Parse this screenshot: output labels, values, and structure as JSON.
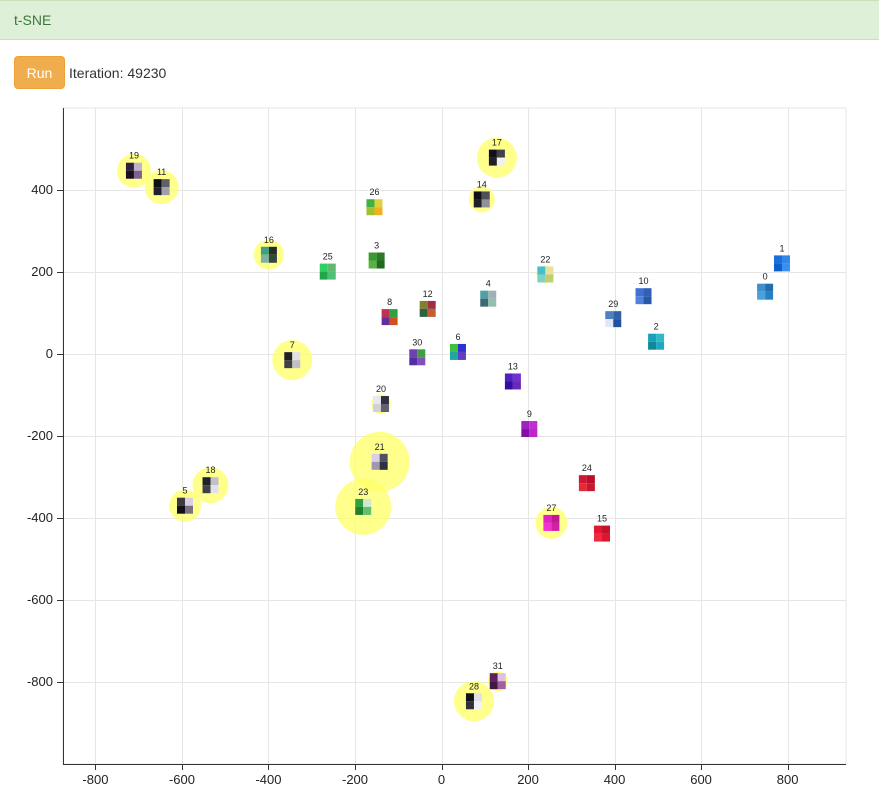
{
  "header": {
    "title": "t-SNE"
  },
  "controls": {
    "run_label": "Run",
    "iteration_label": "Iteration: 49230"
  },
  "chart_data": {
    "type": "scatter",
    "xlim": [
      -875,
      935
    ],
    "ylim": [
      -1000,
      600
    ],
    "grid": true,
    "x_ticks": [
      -800,
      -600,
      -400,
      -200,
      0,
      200,
      400,
      600,
      800
    ],
    "y_ticks": [
      400,
      200,
      0,
      -200,
      -400,
      -600,
      -800
    ],
    "highlight_color": "#ffff66",
    "points": [
      {
        "label": "0",
        "x": 748,
        "y": 152,
        "size": 0,
        "colors": [
          "#3d8fd0",
          "#1f6fb0",
          "#4aa0d8",
          "#2a7fc0"
        ]
      },
      {
        "label": "1",
        "x": 787,
        "y": 221,
        "size": 0,
        "colors": [
          "#1a6fd8",
          "#2f88e8",
          "#0f5fc8",
          "#3a90f0"
        ]
      },
      {
        "label": "2",
        "x": 496,
        "y": 30,
        "size": 0,
        "colors": [
          "#1aa0b8",
          "#2fb8c8",
          "#108898",
          "#20a8c0"
        ]
      },
      {
        "label": "3",
        "x": -150,
        "y": 228,
        "size": 0,
        "colors": [
          "#3a9a30",
          "#2a7a28",
          "#5ab040",
          "#1e6a20"
        ]
      },
      {
        "label": "4",
        "x": 108,
        "y": 135,
        "size": 0,
        "colors": [
          "#50a0a8",
          "#a0b0b8",
          "#406870",
          "#90c0b0"
        ]
      },
      {
        "label": "5",
        "x": -593,
        "y": -370,
        "size": 16,
        "colors": [
          "#3a3a40",
          "#d8d0e0",
          "#101018",
          "#7a7080"
        ]
      },
      {
        "label": "6",
        "x": 38,
        "y": 5,
        "size": 0,
        "colors": [
          "#40c040",
          "#3030d0",
          "#20a8a0",
          "#6040c0"
        ]
      },
      {
        "label": "7",
        "x": -345,
        "y": -15,
        "size": 20,
        "colors": [
          "#202028",
          "#e0e0e8",
          "#404048",
          "#c0c0c8"
        ]
      },
      {
        "label": "8",
        "x": -120,
        "y": 90,
        "size": 0,
        "colors": [
          "#c03050",
          "#30a040",
          "#6030a0",
          "#d05020"
        ]
      },
      {
        "label": "9",
        "x": 203,
        "y": -183,
        "size": 0,
        "colors": [
          "#a020c0",
          "#c030d0",
          "#8010a8",
          "#b828c8"
        ]
      },
      {
        "label": "10",
        "x": 467,
        "y": 141,
        "size": 0,
        "colors": [
          "#4070d0",
          "#3060b8",
          "#5080e0",
          "#2858a8"
        ]
      },
      {
        "label": "11",
        "x": -647,
        "y": 407,
        "size": 17,
        "colors": [
          "#101018",
          "#606068",
          "#202030",
          "#a0a0a8"
        ]
      },
      {
        "label": "12",
        "x": -32,
        "y": 110,
        "size": 0,
        "colors": [
          "#808030",
          "#a03040",
          "#306040",
          "#c06030"
        ]
      },
      {
        "label": "13",
        "x": 165,
        "y": -67,
        "size": 0,
        "colors": [
          "#5020c0",
          "#7030d0",
          "#3010a0",
          "#6828b8"
        ]
      },
      {
        "label": "14",
        "x": 93,
        "y": 377,
        "size": 13,
        "colors": [
          "#101018",
          "#505058",
          "#202028",
          "#909098"
        ]
      },
      {
        "label": "15",
        "x": 371,
        "y": -438,
        "size": 0,
        "colors": [
          "#e01830",
          "#c81028",
          "#f02840",
          "#d81830"
        ]
      },
      {
        "label": "16",
        "x": -399,
        "y": 242,
        "size": 15,
        "colors": [
          "#40a080",
          "#203028",
          "#80b0a0",
          "#304840"
        ]
      },
      {
        "label": "17",
        "x": 128,
        "y": 479,
        "size": 20,
        "colors": [
          "#101018",
          "#404048",
          "#202028",
          "#f0f0f0"
        ]
      },
      {
        "label": "18",
        "x": -534,
        "y": -320,
        "size": 18,
        "colors": [
          "#202028",
          "#c0c0c8",
          "#404048",
          "#e0e0e8"
        ]
      },
      {
        "label": "19",
        "x": -711,
        "y": 447,
        "size": 17,
        "colors": [
          "#302040",
          "#c0b0d0",
          "#181020",
          "#806090"
        ]
      },
      {
        "label": "20",
        "x": -140,
        "y": -122,
        "size": 10,
        "colors": [
          "#e8e8f0",
          "#303040",
          "#d0d0d8",
          "#606070"
        ]
      },
      {
        "label": "21",
        "x": -143,
        "y": -263,
        "size": 30,
        "colors": [
          "#d8d0e8",
          "#505060",
          "#a098b0",
          "#303040"
        ]
      },
      {
        "label": "22",
        "x": 240,
        "y": 194,
        "size": 9,
        "colors": [
          "#40c0d0",
          "#e8e0a0",
          "#80d0c8",
          "#c0d070"
        ]
      },
      {
        "label": "23",
        "x": -181,
        "y": -373,
        "size": 28,
        "colors": [
          "#30a040",
          "#d0e8d0",
          "#208030",
          "#60c070"
        ]
      },
      {
        "label": "24",
        "x": 336,
        "y": -315,
        "size": 0,
        "colors": [
          "#d01830",
          "#b81028",
          "#e82838",
          "#c81830"
        ]
      },
      {
        "label": "25",
        "x": -263,
        "y": 201,
        "size": 0,
        "colors": [
          "#30d060",
          "#60b870",
          "#20a848",
          "#50c078"
        ]
      },
      {
        "label": "26",
        "x": -155,
        "y": 358,
        "size": 8,
        "colors": [
          "#40b040",
          "#e0d040",
          "#a0c030",
          "#f0b020"
        ]
      },
      {
        "label": "27",
        "x": 254,
        "y": -412,
        "size": 16,
        "colors": [
          "#e020c0",
          "#c01890",
          "#f030d0",
          "#d020a8"
        ]
      },
      {
        "label": "28",
        "x": 75,
        "y": -847,
        "size": 20,
        "colors": [
          "#101018",
          "#e0e0e8",
          "#303038",
          "#f0f0f8"
        ]
      },
      {
        "label": "29",
        "x": 397,
        "y": 85,
        "size": 0,
        "colors": [
          "#5080c0",
          "#3060a8",
          "#e0e8f8",
          "#2050a0"
        ]
      },
      {
        "label": "30",
        "x": -56,
        "y": -8,
        "size": 0,
        "colors": [
          "#7040b0",
          "#40a040",
          "#5030a0",
          "#8050c0"
        ]
      },
      {
        "label": "31",
        "x": 130,
        "y": -798,
        "size": 10,
        "colors": [
          "#602060",
          "#e0c0e0",
          "#401840",
          "#a060a0"
        ]
      }
    ]
  }
}
